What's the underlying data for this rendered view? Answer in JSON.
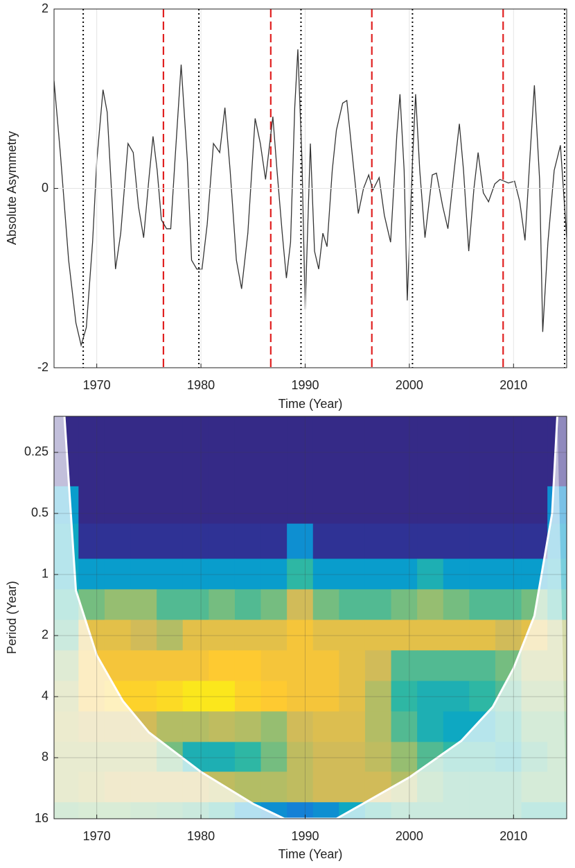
{
  "chart_data": [
    {
      "type": "line",
      "ylabel": "Absolute Asymmetry",
      "xlabel": "Time (Year)",
      "xlim": [
        1965.9,
        2015.1
      ],
      "xticks": [
        1970,
        1980,
        1990,
        2000,
        2010
      ],
      "ylim": [
        -2,
        2
      ],
      "yticks": [
        -2,
        0,
        2
      ],
      "grid": true,
      "color": "#333333",
      "x": [
        1965.9,
        1966.5,
        1967.3,
        1968.0,
        1968.5,
        1969.0,
        1969.6,
        1970.0,
        1970.6,
        1971.0,
        1971.5,
        1971.8,
        1972.3,
        1973.0,
        1973.5,
        1974.0,
        1974.5,
        1975.0,
        1975.4,
        1975.8,
        1976.2,
        1976.7,
        1977.1,
        1977.5,
        1978.1,
        1978.7,
        1979.1,
        1979.6,
        1980.1,
        1980.6,
        1981.2,
        1981.8,
        1982.3,
        1982.8,
        1983.4,
        1983.9,
        1984.5,
        1985.2,
        1985.7,
        1986.2,
        1986.6,
        1986.9,
        1987.3,
        1987.8,
        1988.2,
        1988.6,
        1989.0,
        1989.3,
        1989.7,
        1990.0,
        1990.5,
        1990.9,
        1991.3,
        1991.7,
        1992.1,
        1992.6,
        1993.0,
        1993.6,
        1994.0,
        1994.5,
        1995.1,
        1995.6,
        1996.1,
        1996.5,
        1997.1,
        1997.6,
        1998.2,
        1998.8,
        1999.1,
        1999.5,
        1999.8,
        2000.3,
        2000.6,
        2001.0,
        2001.5,
        2002.2,
        2002.6,
        2003.2,
        2003.7,
        2004.3,
        2004.8,
        2005.2,
        2005.7,
        2006.2,
        2006.6,
        2007.1,
        2007.6,
        2008.2,
        2008.7,
        2009.5,
        2010.1,
        2010.6,
        2011.1,
        2011.6,
        2012.0,
        2012.5,
        2012.8,
        2013.3,
        2013.9,
        2014.5,
        2015.1
      ],
      "values": [
        1.2,
        0.4,
        -0.8,
        -1.5,
        -1.75,
        -1.55,
        -0.6,
        0.3,
        1.1,
        0.85,
        -0.2,
        -0.9,
        -0.5,
        0.5,
        0.4,
        -0.2,
        -0.55,
        0.1,
        0.58,
        0.2,
        -0.35,
        -0.45,
        -0.45,
        0.3,
        1.38,
        0.3,
        -0.8,
        -0.9,
        -0.9,
        -0.4,
        0.5,
        0.4,
        0.9,
        0.2,
        -0.8,
        -1.12,
        -0.5,
        0.78,
        0.5,
        0.1,
        0.5,
        0.8,
        0.2,
        -0.5,
        -1.0,
        -0.6,
        0.9,
        1.55,
        0.3,
        -1.35,
        0.5,
        -0.7,
        -0.9,
        -0.5,
        -0.65,
        0.2,
        0.65,
        0.95,
        0.98,
        0.4,
        -0.28,
        0.0,
        0.15,
        -0.02,
        0.12,
        -0.3,
        -0.6,
        0.6,
        1.05,
        0.2,
        -1.25,
        0.3,
        1.05,
        0.2,
        -0.55,
        0.15,
        0.17,
        -0.2,
        -0.45,
        0.2,
        0.72,
        0.2,
        -0.7,
        0.0,
        0.4,
        -0.05,
        -0.15,
        0.05,
        0.1,
        0.06,
        0.08,
        -0.15,
        -0.58,
        0.4,
        1.15,
        0.1,
        -1.6,
        -0.6,
        0.2,
        0.48,
        -0.55
      ],
      "reference_lines": [
        {
          "color": "#000000",
          "dash": "dotted",
          "x": [
            1968.7,
            1979.8,
            1989.6,
            2000.3,
            2014.9
          ]
        },
        {
          "color": "#e02020",
          "dash": "dashed",
          "x": [
            1976.4,
            1986.7,
            1996.4,
            2009.0
          ]
        }
      ]
    },
    {
      "type": "heatmap",
      "ylabel": "Period (Year)",
      "xlabel": "Time (Year)",
      "log_scale": true,
      "inverted": true,
      "xlim": [
        1965.9,
        2015.1
      ],
      "xticks": [
        1970,
        1980,
        1990,
        2000,
        2010
      ],
      "ylim": [
        0.166,
        16
      ],
      "yticks": [
        0.25,
        0.5,
        1,
        2,
        4,
        8,
        16
      ],
      "grid": true,
      "colormap": [
        "#352a87",
        "#0f5cdd",
        "#1481d6",
        "#06a4ca",
        "#2eb7a4",
        "#87bf77",
        "#d1bb59",
        "#fec832",
        "#f9fb0e"
      ],
      "x": [
        1967,
        1969.5,
        1972,
        1974.5,
        1977,
        1979.5,
        1982,
        1984.5,
        1987,
        1989.5,
        1992,
        1994.5,
        1997,
        1999.5,
        2002,
        2004.5,
        2007,
        2009.5,
        2012,
        2014.5
      ],
      "y": [
        0.2,
        0.3,
        0.45,
        0.7,
        1.0,
        1.4,
        2,
        2.8,
        4,
        5.6,
        8,
        11,
        16
      ],
      "z": [
        [
          0,
          0,
          0,
          0,
          0,
          0,
          0,
          0,
          0,
          0,
          0,
          0,
          0,
          0,
          0,
          0,
          0,
          0,
          0,
          0
        ],
        [
          0,
          0,
          0,
          0,
          0,
          0,
          0,
          0,
          0,
          0,
          0,
          0,
          0,
          0,
          0,
          0,
          0,
          0,
          0,
          0
        ],
        [
          0.35,
          0,
          0,
          0,
          0,
          0,
          0,
          0,
          0,
          0,
          0,
          0,
          0,
          0,
          0,
          0,
          0,
          0,
          0,
          0.3
        ],
        [
          0.4,
          0.02,
          0.02,
          0.02,
          0.02,
          0.02,
          0.02,
          0.02,
          0.02,
          0.3,
          0.02,
          0.02,
          0.02,
          0.02,
          0.02,
          0.02,
          0.02,
          0.02,
          0.02,
          0.35
        ],
        [
          0.4,
          0.35,
          0.35,
          0.35,
          0.35,
          0.35,
          0.35,
          0.35,
          0.35,
          0.5,
          0.35,
          0.35,
          0.35,
          0.35,
          0.45,
          0.35,
          0.35,
          0.35,
          0.35,
          0.4
        ],
        [
          0.5,
          0.6,
          0.65,
          0.65,
          0.55,
          0.55,
          0.6,
          0.55,
          0.6,
          0.75,
          0.6,
          0.55,
          0.55,
          0.6,
          0.65,
          0.6,
          0.55,
          0.55,
          0.6,
          0.5
        ],
        [
          0.55,
          0.8,
          0.8,
          0.75,
          0.7,
          0.8,
          0.8,
          0.8,
          0.8,
          0.85,
          0.8,
          0.8,
          0.8,
          0.8,
          0.8,
          0.8,
          0.8,
          0.75,
          0.8,
          0.7
        ],
        [
          0.65,
          0.85,
          0.85,
          0.85,
          0.85,
          0.85,
          0.88,
          0.88,
          0.85,
          0.85,
          0.85,
          0.8,
          0.75,
          0.55,
          0.55,
          0.55,
          0.55,
          0.6,
          0.7,
          0.7
        ],
        [
          0.7,
          0.85,
          0.9,
          0.9,
          0.92,
          0.95,
          0.95,
          0.9,
          0.88,
          0.85,
          0.85,
          0.8,
          0.7,
          0.5,
          0.45,
          0.45,
          0.5,
          0.55,
          0.65,
          0.65
        ],
        [
          0.72,
          0.75,
          0.75,
          0.75,
          0.7,
          0.7,
          0.72,
          0.7,
          0.65,
          0.75,
          0.78,
          0.78,
          0.7,
          0.55,
          0.45,
          0.4,
          0.4,
          0.5,
          0.6,
          0.6
        ],
        [
          0.7,
          0.7,
          0.7,
          0.7,
          0.6,
          0.45,
          0.45,
          0.5,
          0.6,
          0.72,
          0.75,
          0.75,
          0.72,
          0.65,
          0.55,
          0.5,
          0.5,
          0.45,
          0.55,
          0.6
        ],
        [
          0.7,
          0.72,
          0.75,
          0.75,
          0.75,
          0.75,
          0.72,
          0.7,
          0.7,
          0.72,
          0.75,
          0.75,
          0.75,
          0.7,
          0.6,
          0.55,
          0.55,
          0.55,
          0.6,
          0.6
        ],
        [
          0.6,
          0.62,
          0.62,
          0.6,
          0.58,
          0.55,
          0.5,
          0.35,
          0.3,
          0.25,
          0.3,
          0.4,
          0.5,
          0.55,
          0.55,
          0.55,
          0.55,
          0.55,
          0.5,
          0.5
        ]
      ],
      "coi": {
        "x": [
          1966.9,
          1968,
          1970,
          1972.5,
          1975,
          1980,
          1985,
          1988,
          1993,
          1995,
          2000,
          2005,
          2008,
          2010,
          2012,
          2013.7,
          2014.2
        ],
        "period": [
          0.166,
          1.2,
          2.5,
          4.2,
          6,
          9.4,
          13.5,
          16,
          16,
          14,
          10,
          6.6,
          4.5,
          2.9,
          1.6,
          0.5,
          0.166
        ]
      }
    }
  ]
}
